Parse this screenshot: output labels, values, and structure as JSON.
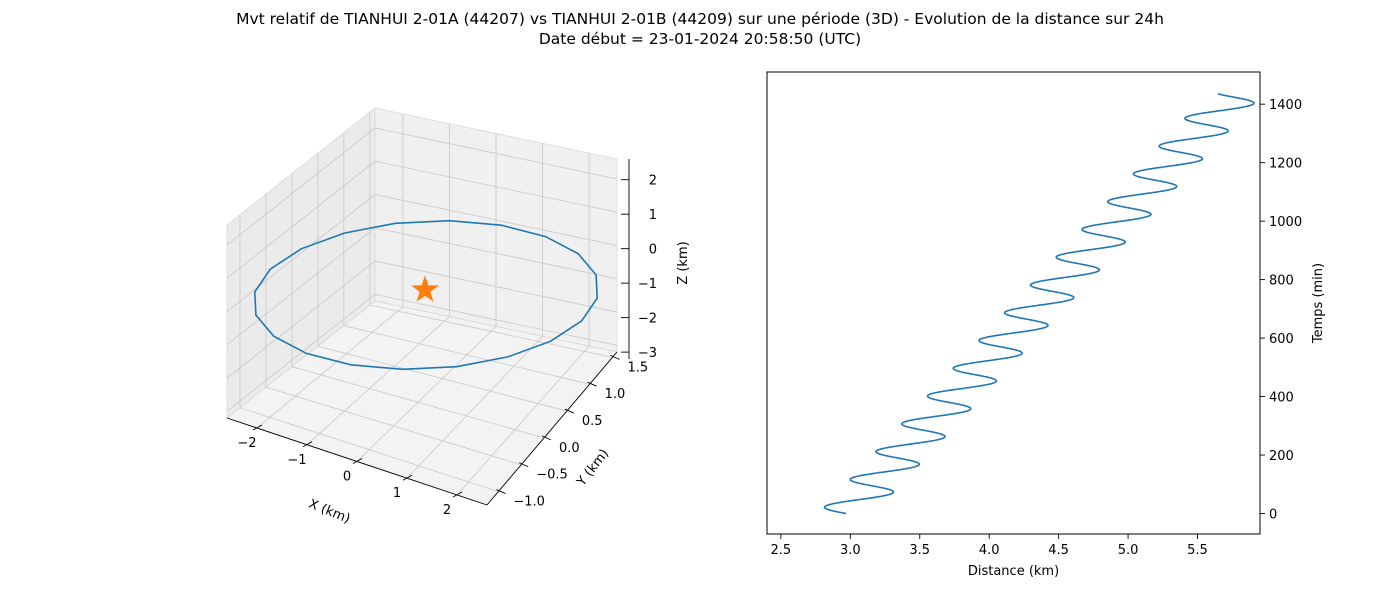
{
  "title_line1": "Mvt relatif de TIANHUI 2-01A (44207) vs TIANHUI 2-01B (44209) sur une période (3D) - Evolution de la distance sur 24h",
  "title_line2": "Date début = 23-01-2024 20:58:50 (UTC)",
  "colors": {
    "series": "#1f77b4",
    "marker": "#ff7f0e"
  },
  "chart_data": [
    {
      "type": "line3d",
      "title": "",
      "xlabel": "X (km)",
      "ylabel": "Y (km)",
      "zlabel": "Z (km)",
      "xlim": [
        -2.6,
        2.6
      ],
      "ylim": [
        -1.25,
        1.6
      ],
      "zlim": [
        -3.2,
        2.6
      ],
      "xticks": [
        "−2",
        "−1",
        "0",
        "1",
        "2"
      ],
      "yticks": [
        "−1.0",
        "−0.5",
        "0.0",
        "0.5",
        "1.0",
        "1.5"
      ],
      "zticks": [
        "−3",
        "−2",
        "−1",
        "0",
        "1",
        "2"
      ],
      "grid": true,
      "marker": {
        "shape": "star",
        "x": 0,
        "y": 0,
        "z": 0
      },
      "orbit": {
        "x_amplitude_km": 2.2,
        "y_amplitude_km": 1.1,
        "z_amplitude_km": 2.2,
        "points": 20,
        "note": "one orbital period of relative motion, closed ellipse around the origin"
      }
    },
    {
      "type": "line",
      "title": "",
      "xlabel": "Distance (km)",
      "ylabel": "Temps (min)",
      "xlim": [
        2.4,
        5.95
      ],
      "ylim": [
        -70,
        1510
      ],
      "xticks": [
        "2.5",
        "3.0",
        "3.5",
        "4.0",
        "4.5",
        "5.0",
        "5.5"
      ],
      "yticks": [
        "0",
        "200",
        "400",
        "600",
        "800",
        "1000",
        "1200",
        "1400"
      ],
      "grid": false,
      "y_axis_side": "right",
      "series": [
        {
          "start_distance_km": 2.97,
          "end_distance_km": 5.77,
          "oscillation_amplitude_km": 0.2,
          "period_min": 95,
          "duration_min": 1435
        }
      ]
    }
  ]
}
